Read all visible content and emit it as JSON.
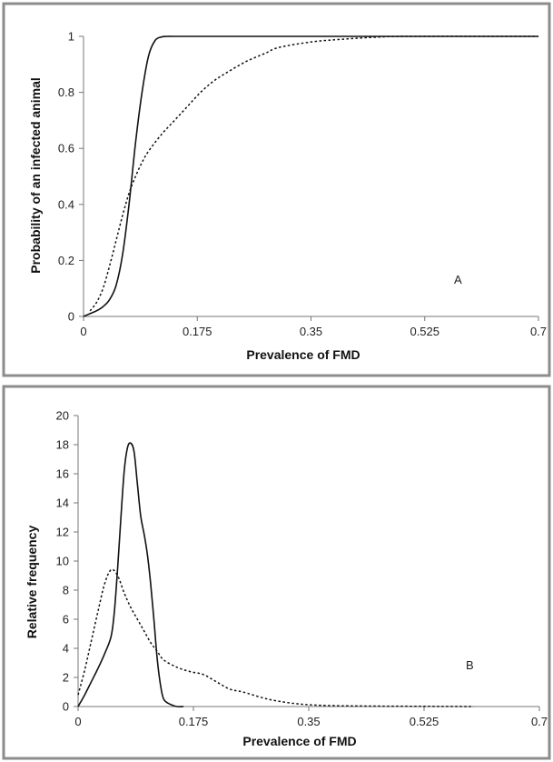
{
  "chart_data": [
    {
      "type": "line",
      "panel_label": "A",
      "title": "",
      "xlabel": "Prevalence of FMD",
      "ylabel": "Probability of an infected animal",
      "xlim": [
        0,
        0.7
      ],
      "ylim": [
        0,
        1
      ],
      "x_ticks": [
        "0",
        "0.175",
        "0.35",
        "0.525",
        "0.7"
      ],
      "y_ticks": [
        "0",
        "0.2",
        "0.4",
        "0.6",
        "0.8",
        "1"
      ],
      "grid": false,
      "legend": "none",
      "series": [
        {
          "style": "solid",
          "x": [
            0,
            0.01,
            0.02,
            0.03,
            0.04,
            0.05,
            0.06,
            0.07,
            0.08,
            0.09,
            0.1,
            0.11,
            0.12,
            0.13,
            0.14,
            0.2,
            0.35,
            0.525,
            0.7
          ],
          "y": [
            0,
            0.01,
            0.02,
            0.035,
            0.06,
            0.11,
            0.22,
            0.4,
            0.62,
            0.8,
            0.93,
            0.985,
            0.998,
            1,
            1,
            1,
            1,
            1,
            1
          ]
        },
        {
          "style": "dotted",
          "x": [
            0.01,
            0.02,
            0.03,
            0.04,
            0.05,
            0.06,
            0.07,
            0.08,
            0.09,
            0.1,
            0.12,
            0.14,
            0.16,
            0.18,
            0.2,
            0.22,
            0.25,
            0.28,
            0.3,
            0.35,
            0.4,
            0.45,
            0.5,
            0.7
          ],
          "y": [
            0.02,
            0.05,
            0.1,
            0.18,
            0.27,
            0.36,
            0.44,
            0.5,
            0.55,
            0.59,
            0.65,
            0.7,
            0.75,
            0.8,
            0.84,
            0.87,
            0.91,
            0.94,
            0.96,
            0.98,
            0.99,
            0.997,
            1,
            1
          ]
        }
      ]
    },
    {
      "type": "line",
      "panel_label": "B",
      "title": "",
      "xlabel": "Prevalence of FMD",
      "ylabel": "Relative frequency",
      "xlim": [
        0,
        0.7
      ],
      "ylim": [
        0,
        20
      ],
      "x_ticks": [
        "0",
        "0.175",
        "0.35",
        "0.525",
        "0.7"
      ],
      "y_ticks": [
        "0",
        "2",
        "4",
        "6",
        "8",
        "10",
        "12",
        "14",
        "16",
        "18",
        "20"
      ],
      "grid": false,
      "legend": "none",
      "series": [
        {
          "style": "solid",
          "x": [
            0,
            0.01,
            0.02,
            0.03,
            0.04,
            0.05,
            0.055,
            0.06,
            0.065,
            0.07,
            0.075,
            0.08,
            0.085,
            0.09,
            0.095,
            0.1,
            0.105,
            0.11,
            0.115,
            0.12,
            0.125,
            0.13,
            0.14,
            0.15,
            0.16
          ],
          "y": [
            0,
            0.8,
            1.7,
            2.6,
            3.6,
            4.8,
            6.5,
            9.5,
            13,
            16.2,
            17.8,
            18.1,
            17.5,
            15.3,
            13.1,
            11.9,
            10.5,
            8.5,
            6,
            3.3,
            1.5,
            0.5,
            0.15,
            0,
            0
          ]
        },
        {
          "style": "dotted",
          "x": [
            0,
            0.01,
            0.02,
            0.03,
            0.04,
            0.05,
            0.06,
            0.07,
            0.08,
            0.09,
            0.1,
            0.11,
            0.12,
            0.13,
            0.15,
            0.17,
            0.19,
            0.21,
            0.23,
            0.25,
            0.28,
            0.3,
            0.33,
            0.36,
            0.4,
            0.45,
            0.5,
            0.55,
            0.6
          ],
          "y": [
            0.8,
            2.5,
            4.5,
            6.5,
            8.4,
            9.4,
            9.0,
            7.8,
            6.8,
            6.0,
            5.2,
            4.4,
            3.8,
            3.2,
            2.7,
            2.4,
            2.2,
            1.7,
            1.2,
            1.0,
            0.6,
            0.4,
            0.2,
            0.1,
            0.05,
            0.03,
            0.02,
            0.01,
            0
          ]
        }
      ]
    }
  ]
}
